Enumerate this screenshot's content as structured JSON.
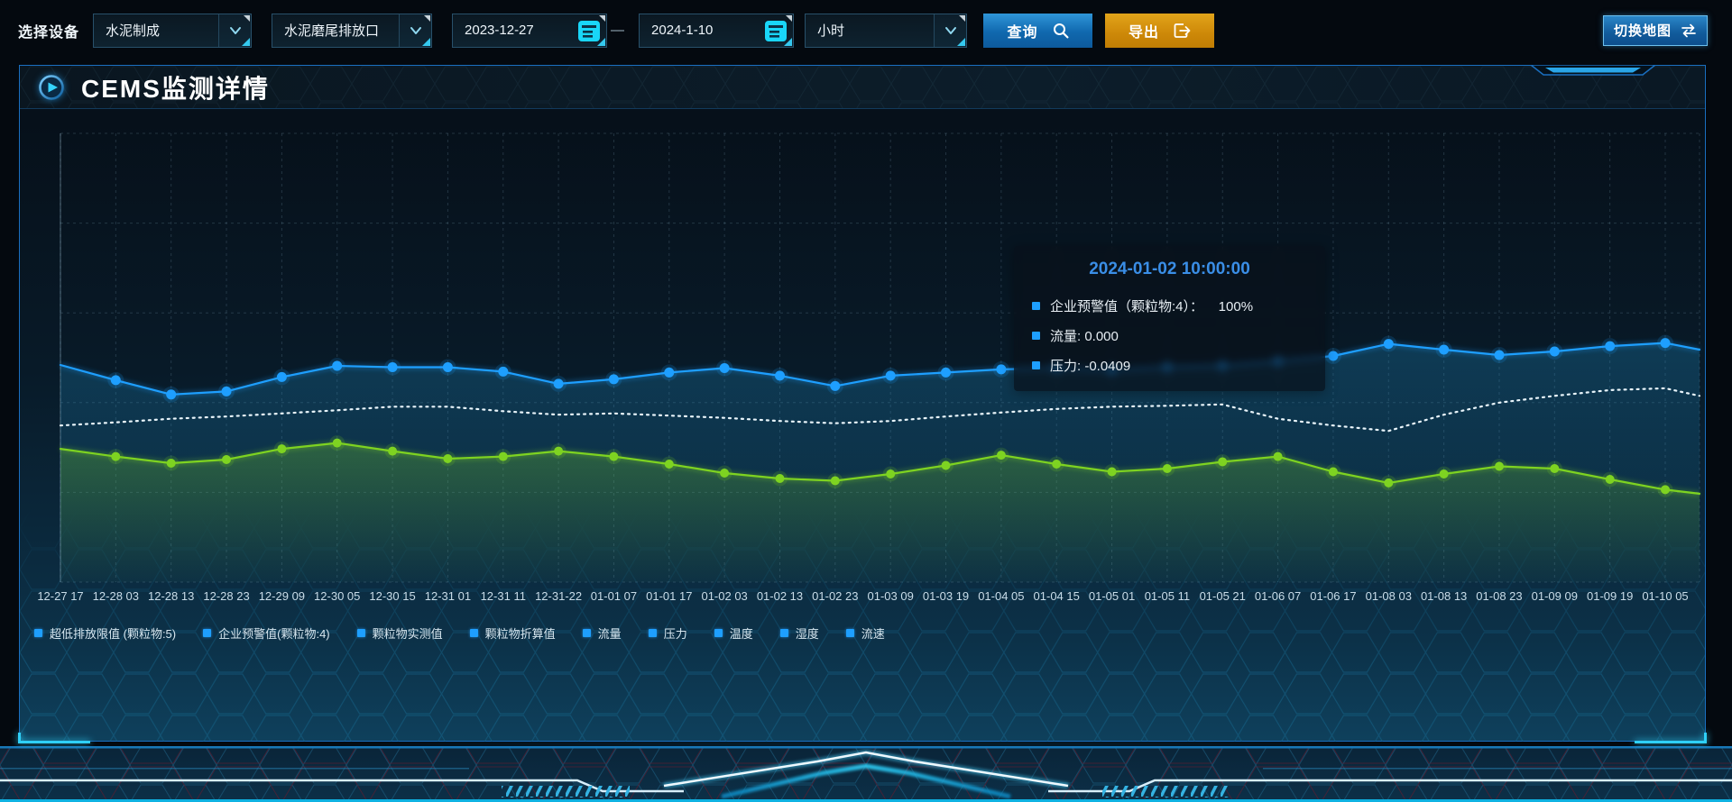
{
  "toolbar": {
    "device_label": "选择设备",
    "selects": [
      {
        "value": "水泥制成"
      },
      {
        "value": "水泥磨尾排放口"
      },
      {
        "value": "小时"
      }
    ],
    "date_start": "2023-12-27",
    "date_separator": "—",
    "date_end": "2024-1-10",
    "query_label": "查询",
    "export_label": "导出",
    "switch_map_label": "切换地图"
  },
  "panel": {
    "title": "CEMS监测详情"
  },
  "tooltip": {
    "title": "2024-01-02 10:00:00",
    "items": [
      {
        "text": "企业预警值（颗粒物:4）：    100%"
      },
      {
        "text": "流量: 0.000"
      },
      {
        "text": "压力: -0.0409"
      }
    ]
  },
  "legend": [
    {
      "label": "超低排放限值 (颗粒物:5)"
    },
    {
      "label": "企业预警值(颗粒物:4)"
    },
    {
      "label": "颗粒物实测值"
    },
    {
      "label": "颗粒物折算值"
    },
    {
      "label": "流量"
    },
    {
      "label": "压力"
    },
    {
      "label": "温度"
    },
    {
      "label": "湿度"
    },
    {
      "label": "流速"
    }
  ],
  "icons": {
    "query": "magnifier",
    "export": "arrow-out-of-box",
    "switch_map": "swap-arrows",
    "date": "calendar",
    "select": "chevron-down",
    "panel_title": "play-circle"
  },
  "colors": {
    "line_blue": "#1e9fff",
    "line_green": "#7ed321",
    "line_white": "#e8f4fa",
    "query_button": "#1068ae",
    "export_button": "#cd8808",
    "panel_border": "#1a6fc0",
    "tooltip_title": "#3a8ee6",
    "legend_marker": "#1e9fff"
  },
  "chart_data": {
    "type": "line",
    "title": "",
    "xlabel": "",
    "ylabel": "",
    "y_axis_visible": false,
    "grid": true,
    "legend_position": "bottom",
    "ylim": [
      0,
      100
    ],
    "x_labels": [
      "12-27 17",
      "12-28 03",
      "12-28 13",
      "12-28 23",
      "12-29 09",
      "12-30 05",
      "12-30 15",
      "12-31 01",
      "12-31 11",
      "12-31-22",
      "01-01 07",
      "01-01 17",
      "01-02 03",
      "01-02 13",
      "01-02 23",
      "01-03 09",
      "01-03 19",
      "01-04 05",
      "01-04 15",
      "01-05 01",
      "01-05 11",
      "01-05 21",
      "01-06 07",
      "01-06 17",
      "01-08 03",
      "01-08 13",
      "01-08 23",
      "01-09 09",
      "01-09 19",
      "01-10 05"
    ],
    "series": [
      {
        "name": "流量",
        "color": "#1e9fff",
        "line_style": "solid",
        "marker": true,
        "marker_radius": 5.5,
        "area_fill": true,
        "area_color": "30,140,195",
        "values": [
          48.4,
          45.0,
          41.8,
          42.5,
          45.7,
          48.2,
          47.9,
          47.9,
          46.9,
          44.2,
          45.2,
          46.7,
          47.7,
          46.0,
          43.7,
          46.0,
          46.7,
          47.4,
          47.7,
          47.2,
          47.9,
          48.2,
          49.2,
          50.4,
          53.1,
          51.8,
          50.6,
          51.4,
          52.6,
          53.3
        ],
        "edge_value": 51.8
      },
      {
        "name": "企业预警值(颗粒物:4)",
        "color": "#e8f4fa",
        "line_style": "dotted",
        "marker": false,
        "marker_radius": 0,
        "area_fill": false,
        "area_color": "",
        "values": [
          34.9,
          35.6,
          36.4,
          36.9,
          37.6,
          38.3,
          39.1,
          39.1,
          38.1,
          37.3,
          37.6,
          37.1,
          36.6,
          35.9,
          35.4,
          35.9,
          36.9,
          37.8,
          38.6,
          39.1,
          39.3,
          39.6,
          36.4,
          34.9,
          33.7,
          37.3,
          40.0,
          41.5,
          42.8,
          43.2
        ],
        "edge_value": 41.5
      },
      {
        "name": "压力",
        "color": "#7ed321",
        "line_style": "solid",
        "marker": true,
        "marker_radius": 5,
        "area_fill": true,
        "area_color": "118,205,45",
        "values": [
          29.7,
          28.0,
          26.5,
          27.3,
          29.7,
          31.0,
          29.2,
          27.5,
          28.0,
          29.2,
          28.0,
          26.3,
          24.3,
          23.1,
          22.6,
          24.1,
          26.0,
          28.3,
          26.3,
          24.6,
          25.3,
          26.8,
          28.0,
          24.6,
          22.1,
          24.1,
          25.8,
          25.3,
          22.9,
          20.6
        ],
        "edge_value": 19.7
      }
    ]
  }
}
